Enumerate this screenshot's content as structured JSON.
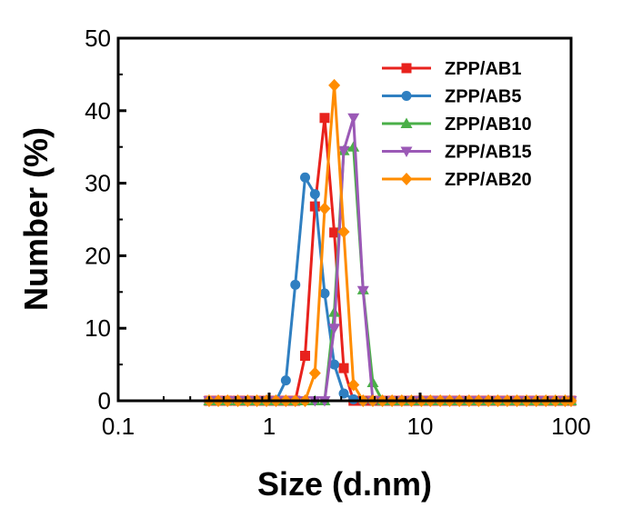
{
  "chart_data": {
    "type": "line",
    "xlabel": "Size (d.nm)",
    "ylabel": "Number (%)",
    "xscale": "log",
    "xlim": [
      0.1,
      100
    ],
    "ylim": [
      0,
      50
    ],
    "x_ticks": [
      0.1,
      1,
      10,
      100
    ],
    "x_tick_labels": [
      "0.1",
      "1",
      "10",
      "100"
    ],
    "y_ticks": [
      0,
      10,
      20,
      30,
      40,
      50
    ],
    "y_tick_labels": [
      "0",
      "10",
      "20",
      "30",
      "40",
      "50"
    ],
    "grid": false,
    "legend_position": "top-right",
    "series": [
      {
        "name": "ZPP/AB1",
        "color": "#e8221d",
        "marker": "square",
        "x": [
          0.4,
          0.46,
          0.53,
          0.62,
          0.72,
          0.83,
          0.96,
          1.11,
          1.29,
          1.49,
          1.73,
          2.01,
          2.33,
          2.7,
          3.12,
          3.62,
          4.19,
          4.86,
          5.63,
          6.52,
          7.56,
          8.76,
          10.2,
          11.7,
          13.6,
          15.7,
          18.2,
          21.1,
          24.4,
          28.3,
          32.7,
          37.8,
          43.8,
          50.7,
          58.8,
          68.1,
          78.8,
          91.3,
          100
        ],
        "y": [
          0,
          0,
          0,
          0,
          0,
          0,
          0,
          0,
          0,
          0,
          6.2,
          26.8,
          39,
          23.2,
          4.5,
          0,
          0,
          0,
          0,
          0,
          0,
          0,
          0,
          0,
          0,
          0,
          0,
          0,
          0,
          0,
          0,
          0,
          0,
          0,
          0,
          0,
          0,
          0,
          0
        ]
      },
      {
        "name": "ZPP/AB5",
        "color": "#2f7fc1",
        "marker": "circle",
        "x": [
          0.4,
          0.46,
          0.53,
          0.62,
          0.72,
          0.83,
          0.96,
          1.11,
          1.29,
          1.49,
          1.73,
          2.01,
          2.33,
          2.7,
          3.12,
          3.62,
          4.19,
          4.86,
          5.63,
          6.52,
          7.56,
          8.76,
          10.2,
          11.7,
          13.6,
          15.7,
          18.2,
          21.1,
          24.4,
          28.3,
          32.7,
          37.8,
          43.8,
          50.7,
          58.8,
          68.1,
          78.8,
          91.3,
          100
        ],
        "y": [
          0,
          0,
          0,
          0,
          0,
          0,
          0,
          0,
          2.8,
          16,
          30.8,
          28.5,
          14.8,
          5,
          1,
          0.2,
          0,
          0,
          0,
          0,
          0,
          0,
          0,
          0,
          0,
          0,
          0,
          0,
          0,
          0,
          0,
          0,
          0,
          0,
          0,
          0,
          0,
          0,
          0
        ]
      },
      {
        "name": "ZPP/AB10",
        "color": "#4aaf48",
        "marker": "triangle-up",
        "x": [
          0.4,
          0.46,
          0.53,
          0.62,
          0.72,
          0.83,
          0.96,
          1.11,
          1.29,
          1.49,
          1.73,
          2.01,
          2.33,
          2.7,
          3.12,
          3.62,
          4.19,
          4.86,
          5.63,
          6.52,
          7.56,
          8.76,
          10.2,
          11.7,
          13.6,
          15.7,
          18.2,
          21.1,
          24.4,
          28.3,
          32.7,
          37.8,
          43.8,
          50.7,
          58.8,
          68.1,
          78.8,
          91.3,
          100
        ],
        "y": [
          0,
          0,
          0,
          0,
          0,
          0,
          0,
          0,
          0,
          0,
          0,
          0,
          0,
          12.2,
          34.5,
          35,
          15.3,
          2.5,
          0,
          0,
          0,
          0,
          0,
          0,
          0,
          0,
          0,
          0,
          0,
          0,
          0,
          0,
          0,
          0,
          0,
          0,
          0,
          0,
          0
        ]
      },
      {
        "name": "ZPP/AB15",
        "color": "#9b59b6",
        "marker": "triangle-down",
        "x": [
          0.4,
          0.46,
          0.53,
          0.62,
          0.72,
          0.83,
          0.96,
          1.11,
          1.29,
          1.49,
          1.73,
          2.01,
          2.33,
          2.7,
          3.12,
          3.62,
          4.19,
          4.86,
          5.63,
          6.52,
          7.56,
          8.76,
          10.2,
          11.7,
          13.6,
          15.7,
          18.2,
          21.1,
          24.4,
          28.3,
          32.7,
          37.8,
          43.8,
          50.7,
          58.8,
          68.1,
          78.8,
          91.3,
          100
        ],
        "y": [
          0,
          0,
          0,
          0,
          0,
          0,
          0,
          0,
          0,
          0,
          0,
          0,
          0,
          10,
          34.5,
          39,
          15.2,
          0,
          0,
          0,
          0,
          0,
          0,
          0,
          0,
          0,
          0,
          0,
          0,
          0,
          0,
          0,
          0,
          0,
          0,
          0,
          0,
          0,
          0
        ]
      },
      {
        "name": "ZPP/AB20",
        "color": "#ff8c00",
        "marker": "diamond",
        "x": [
          0.4,
          0.46,
          0.53,
          0.62,
          0.72,
          0.83,
          0.96,
          1.11,
          1.29,
          1.49,
          1.73,
          2.01,
          2.33,
          2.7,
          3.12,
          3.62,
          4.19,
          4.86,
          5.63,
          6.52,
          7.56,
          8.76,
          10.2,
          11.7,
          13.6,
          15.7,
          18.2,
          21.1,
          24.4,
          28.3,
          32.7,
          37.8,
          43.8,
          50.7,
          58.8,
          68.1,
          78.8,
          91.3,
          100
        ],
        "y": [
          0,
          0,
          0,
          0,
          0,
          0,
          0,
          0,
          0,
          0,
          0,
          3.8,
          26.5,
          43.5,
          23.3,
          2.2,
          0,
          0,
          0,
          0,
          0,
          0,
          0,
          0,
          0,
          0,
          0,
          0,
          0,
          0,
          0,
          0,
          0,
          0,
          0,
          0,
          0,
          0,
          0
        ]
      }
    ]
  }
}
